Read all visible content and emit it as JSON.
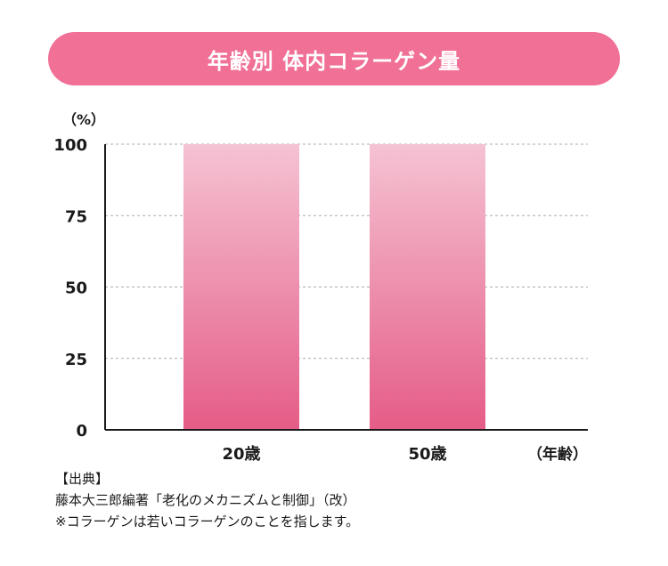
{
  "chart_data": {
    "type": "bar",
    "title": "年齢別 体内コラーゲン量",
    "categories": [
      "20歳",
      "50歳"
    ],
    "values": [
      100,
      100
    ],
    "ylim": [
      0,
      100
    ],
    "yticks": [
      0,
      25,
      50,
      75,
      100
    ],
    "ylabel": "（%）",
    "xlabel": "（年齢）",
    "grid": true,
    "colors": {
      "title_bg": "#f07096",
      "bar_top": "#f5c3d3",
      "bar_bottom": "#e55c87",
      "grid": "#aaaaaa"
    }
  },
  "source": {
    "heading": "【出典】",
    "line1": "藤本大三郎編著「老化のメカニズムと制御」（改）",
    "line2": "※コラーゲンは若いコラーゲンのことを指します。"
  }
}
